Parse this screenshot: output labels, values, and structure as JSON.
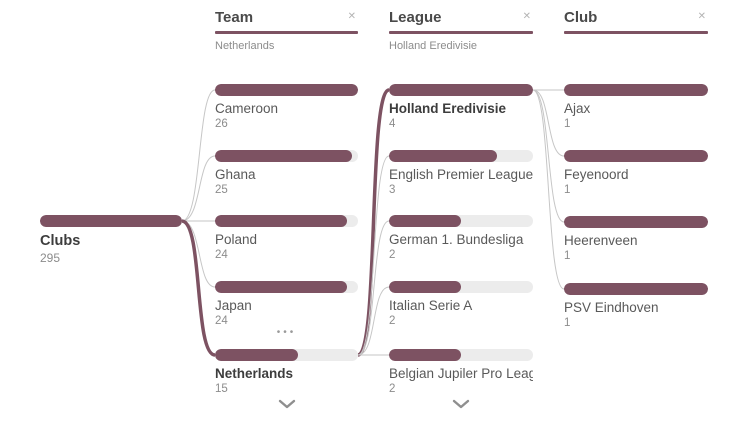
{
  "colors": {
    "accent": "#7D5262",
    "track": "#ececec",
    "link": "#c6c6c6",
    "header_text": "#4a4a4a",
    "label_text": "#595959",
    "muted_text": "#8c8c8c"
  },
  "ui": {
    "close_glyph": "✕",
    "more_glyph": "•••"
  },
  "root": {
    "label": "Clubs",
    "value": "295"
  },
  "columns": [
    {
      "field": "Team",
      "selection": "Netherlands",
      "items": [
        {
          "label": "Cameroon",
          "value": "26",
          "fill": 1,
          "bold": false
        },
        {
          "label": "Ghana",
          "value": "25",
          "fill": 0.961,
          "bold": false
        },
        {
          "label": "Poland",
          "value": "24",
          "fill": 0.923,
          "bold": false
        },
        {
          "label": "Japan",
          "value": "24",
          "fill": 0.923,
          "bold": false
        },
        {
          "label": "Netherlands",
          "value": "15",
          "fill": 0.577,
          "bold": true
        }
      ]
    },
    {
      "field": "League",
      "selection": "Holland Eredivisie",
      "items": [
        {
          "label": "Holland Eredivisie",
          "value": "4",
          "fill": 1,
          "bold": true
        },
        {
          "label": "English Premier League",
          "value": "3",
          "fill": 0.75,
          "bold": false
        },
        {
          "label": "German 1. Bundesliga",
          "value": "2",
          "fill": 0.5,
          "bold": false
        },
        {
          "label": "Italian Serie A",
          "value": "2",
          "fill": 0.5,
          "bold": false
        },
        {
          "label": "Belgian Jupiler Pro League",
          "value": "2",
          "fill": 0.5,
          "bold": false
        }
      ]
    },
    {
      "field": "Club",
      "selection": "",
      "items": [
        {
          "label": "Ajax",
          "value": "1",
          "fill": 1,
          "bold": false
        },
        {
          "label": "Feyenoord",
          "value": "1",
          "fill": 1,
          "bold": false
        },
        {
          "label": "Heerenveen",
          "value": "1",
          "fill": 1,
          "bold": false
        },
        {
          "label": "PSV Eindhoven",
          "value": "1",
          "fill": 1,
          "bold": false
        }
      ]
    }
  ]
}
